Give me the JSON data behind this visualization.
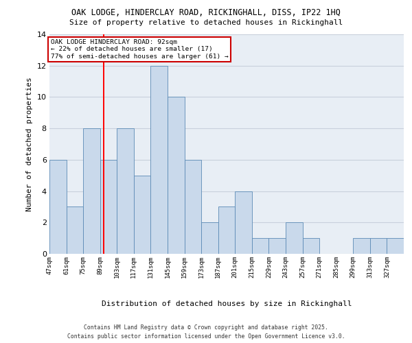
{
  "title_line1": "OAK LODGE, HINDERCLAY ROAD, RICKINGHALL, DISS, IP22 1HQ",
  "title_line2": "Size of property relative to detached houses in Rickinghall",
  "xlabel": "Distribution of detached houses by size in Rickinghall",
  "ylabel": "Number of detached properties",
  "footer_line1": "Contains HM Land Registry data © Crown copyright and database right 2025.",
  "footer_line2": "Contains public sector information licensed under the Open Government Licence v3.0.",
  "bin_labels": [
    "47sqm",
    "61sqm",
    "75sqm",
    "89sqm",
    "103sqm",
    "117sqm",
    "131sqm",
    "145sqm",
    "159sqm",
    "173sqm",
    "187sqm",
    "201sqm",
    "215sqm",
    "229sqm",
    "243sqm",
    "257sqm",
    "271sqm",
    "285sqm",
    "299sqm",
    "313sqm",
    "327sqm"
  ],
  "bin_edges": [
    47,
    61,
    75,
    89,
    103,
    117,
    131,
    145,
    159,
    173,
    187,
    201,
    215,
    229,
    243,
    257,
    271,
    285,
    299,
    313,
    327,
    341
  ],
  "values": [
    6,
    3,
    8,
    6,
    8,
    5,
    12,
    10,
    6,
    2,
    3,
    4,
    1,
    1,
    2,
    1,
    0,
    0,
    1,
    1,
    1
  ],
  "bar_color": "#c9d9eb",
  "bar_edge_color": "#5b8ab5",
  "grid_color": "#c8d0dc",
  "bg_color": "#e8eef5",
  "red_line_x": 92,
  "annotation_text": "OAK LODGE HINDERCLAY ROAD: 92sqm\n← 22% of detached houses are smaller (17)\n77% of semi-detached houses are larger (61) →",
  "annotation_box_color": "#ffffff",
  "annotation_box_edge": "#cc0000",
  "ylim": [
    0,
    14
  ],
  "yticks": [
    0,
    2,
    4,
    6,
    8,
    10,
    12,
    14
  ]
}
